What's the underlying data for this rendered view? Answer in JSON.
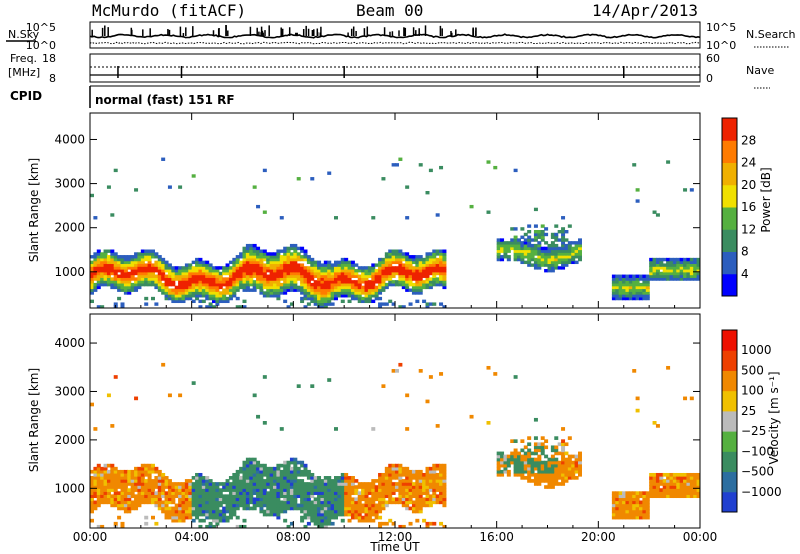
{
  "header": {
    "station": "McMurdo (fitACF)",
    "beam": "Beam 00",
    "date": "14/Apr/2013",
    "cpid_label": "CPID",
    "cpid_value": "normal (fast) 151 RF",
    "nsky_label": "N.Sky",
    "nsearch_label": "N.Search",
    "nave_label": "Nave",
    "freq_label_1": "Freq.",
    "freq_label_2": "[MHz]",
    "noise_ticks": [
      "10^5",
      "10^0"
    ],
    "freq_ticks": [
      "18",
      "8"
    ],
    "nave_ticks": [
      "60",
      "0"
    ]
  },
  "chart_data": [
    {
      "type": "heatmap",
      "name": "power",
      "ylabel": "Slant Range [km]",
      "y_ticks": [
        "1000",
        "2000",
        "3000",
        "4000"
      ],
      "ylim": [
        180,
        4600
      ],
      "colorbar": {
        "label": "Power [dB]",
        "ticks": [
          "4",
          "8",
          "12",
          "16",
          "20",
          "24",
          "28"
        ],
        "colors": [
          "#0000ff",
          "#2c5ebe",
          "#3a8c60",
          "#55b040",
          "#f0e000",
          "#f0b000",
          "#ff7b00",
          "#ee2200"
        ]
      }
    },
    {
      "type": "heatmap",
      "name": "velocity",
      "ylabel": "Slant Range [km]",
      "y_ticks": [
        "1000",
        "2000",
        "3000",
        "4000"
      ],
      "ylim": [
        180,
        4600
      ],
      "colorbar": {
        "label": "Velocity [m s⁻¹]",
        "ticks": [
          "1000",
          "500",
          "100",
          "25",
          "−25",
          "−100",
          "−500",
          "−1000"
        ],
        "colors": [
          "#2040d0",
          "#2c6ea0",
          "#3a8c60",
          "#55b040",
          "#bbbbbb",
          "#f0c000",
          "#f08800",
          "#ee4000",
          "#ee1000"
        ]
      }
    }
  ],
  "x_axis": {
    "label": "Time UT",
    "ticks": [
      "00:00",
      "04:00",
      "08:00",
      "12:00",
      "16:00",
      "20:00",
      "00:00"
    ],
    "range_hours": [
      0,
      24
    ]
  }
}
